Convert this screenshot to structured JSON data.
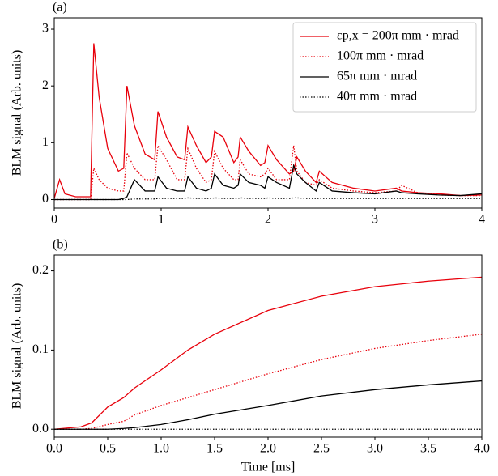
{
  "chart_data": [
    {
      "type": "line",
      "label": "(a)",
      "ylabel": "BLM signal (Arb. units)",
      "legend": "upper right",
      "xlim": [
        0,
        4
      ],
      "xticks": [
        0,
        1,
        2,
        3,
        4
      ],
      "ylim": [
        -0.15,
        3.2
      ],
      "yticks": [
        0,
        1,
        2,
        3
      ],
      "x": [
        0,
        0.05,
        0.1,
        0.2,
        0.3,
        0.34,
        0.37,
        0.42,
        0.5,
        0.6,
        0.65,
        0.68,
        0.75,
        0.85,
        0.94,
        0.97,
        1.05,
        1.15,
        1.22,
        1.25,
        1.33,
        1.42,
        1.47,
        1.5,
        1.58,
        1.68,
        1.72,
        1.74,
        1.82,
        1.93,
        1.97,
        2.0,
        2.08,
        2.2,
        2.24,
        2.27,
        2.35,
        2.45,
        2.48,
        2.6,
        2.8,
        3.0,
        3.2,
        3.25,
        3.4,
        3.6,
        3.8,
        4.0
      ],
      "series": [
        {
          "name": "εp,x = 200π mm · mrad",
          "color": "#e8000b",
          "linestyle": "solid",
          "values": [
            0.02,
            0.35,
            0.1,
            0.05,
            0.05,
            0.05,
            2.75,
            1.8,
            0.9,
            0.5,
            0.55,
            2.0,
            1.3,
            0.8,
            0.7,
            1.55,
            1.1,
            0.75,
            0.7,
            1.28,
            0.95,
            0.65,
            0.75,
            1.2,
            1.1,
            0.65,
            0.75,
            1.1,
            0.85,
            0.6,
            0.65,
            0.95,
            0.7,
            0.45,
            0.5,
            0.75,
            0.5,
            0.3,
            0.5,
            0.3,
            0.2,
            0.15,
            0.2,
            0.15,
            0.12,
            0.1,
            0.07,
            0.08
          ]
        },
        {
          "name": "100π mm · mrad",
          "color": "#e8000b",
          "linestyle": "dotted",
          "values": [
            0,
            0,
            0,
            0,
            0,
            0,
            0.55,
            0.35,
            0.2,
            0.15,
            0.15,
            0.82,
            0.55,
            0.35,
            0.35,
            0.95,
            0.7,
            0.35,
            0.35,
            0.9,
            0.55,
            0.3,
            0.35,
            0.85,
            0.55,
            0.35,
            0.35,
            0.7,
            0.45,
            0.4,
            0.45,
            0.55,
            0.35,
            0.35,
            0.95,
            0.5,
            0.3,
            0.25,
            0.35,
            0.2,
            0.15,
            0.12,
            0.15,
            0.25,
            0.12,
            0.08,
            0.07,
            0.07
          ]
        },
        {
          "name": "65π mm · mrad",
          "color": "#000000",
          "linestyle": "solid",
          "values": [
            0,
            0,
            0,
            0,
            0,
            0,
            0,
            0,
            0,
            0,
            0.02,
            0.05,
            0.35,
            0.15,
            0.15,
            0.4,
            0.2,
            0.15,
            0.15,
            0.4,
            0.2,
            0.15,
            0.2,
            0.45,
            0.25,
            0.2,
            0.25,
            0.45,
            0.3,
            0.25,
            0.2,
            0.4,
            0.3,
            0.2,
            0.6,
            0.45,
            0.3,
            0.15,
            0.3,
            0.15,
            0.12,
            0.1,
            0.15,
            0.12,
            0.1,
            0.08,
            0.07,
            0.1
          ]
        },
        {
          "name": "40π mm · mrad",
          "color": "#000000",
          "linestyle": "dotted",
          "values": [
            0,
            0,
            0,
            0,
            0,
            0,
            0,
            0,
            0,
            0,
            0,
            0,
            0.01,
            0.01,
            0.01,
            0.02,
            0.02,
            0.02,
            0.02,
            0.03,
            0.02,
            0.02,
            0.02,
            0.03,
            0.02,
            0.02,
            0.02,
            0.03,
            0.02,
            0.02,
            0.02,
            0.03,
            0.02,
            0.02,
            0.03,
            0.03,
            0.02,
            0.02,
            0.02,
            0.02,
            0.02,
            0.02,
            0.02,
            0.02,
            0.02,
            0.02,
            0.02,
            0.02
          ]
        }
      ]
    },
    {
      "type": "line",
      "label": "(b)",
      "ylabel": "BLM signal (Arb. units)",
      "xlabel": "Time [ms]",
      "xlim": [
        0,
        4
      ],
      "xticks": [
        {
          "value": 0,
          "label": "0.0"
        },
        0.5,
        {
          "value": 1,
          "label": "1.0"
        },
        1.5,
        {
          "value": 2,
          "label": "2.0"
        },
        2.5,
        {
          "value": 3,
          "label": "3.0"
        },
        3.5,
        {
          "value": 4,
          "label": "4.0"
        }
      ],
      "ylim": [
        -0.01,
        0.22
      ],
      "yticks": [
        {
          "value": 0,
          "label": "0.0"
        },
        0.1,
        0.2
      ],
      "x": [
        0,
        0.25,
        0.35,
        0.5,
        0.65,
        0.75,
        1.0,
        1.25,
        1.5,
        2.0,
        2.5,
        3.0,
        3.5,
        4.0
      ],
      "series": [
        {
          "color": "#e8000b",
          "linestyle": "solid",
          "values": [
            0,
            0.003,
            0.008,
            0.028,
            0.04,
            0.052,
            0.075,
            0.1,
            0.12,
            0.15,
            0.168,
            0.18,
            0.187,
            0.192
          ]
        },
        {
          "color": "#e8000b",
          "linestyle": "dotted",
          "values": [
            0,
            0,
            0.001,
            0.006,
            0.01,
            0.018,
            0.03,
            0.04,
            0.05,
            0.07,
            0.088,
            0.102,
            0.112,
            0.12
          ]
        },
        {
          "color": "#000000",
          "linestyle": "solid",
          "values": [
            0,
            0,
            0,
            0,
            0.001,
            0.002,
            0.006,
            0.012,
            0.019,
            0.03,
            0.042,
            0.05,
            0.056,
            0.061
          ]
        },
        {
          "color": "#000000",
          "linestyle": "dotted",
          "values": [
            0,
            0,
            0,
            0,
            0,
            0,
            0,
            0,
            0,
            0,
            0,
            0,
            0,
            0
          ]
        }
      ]
    }
  ]
}
